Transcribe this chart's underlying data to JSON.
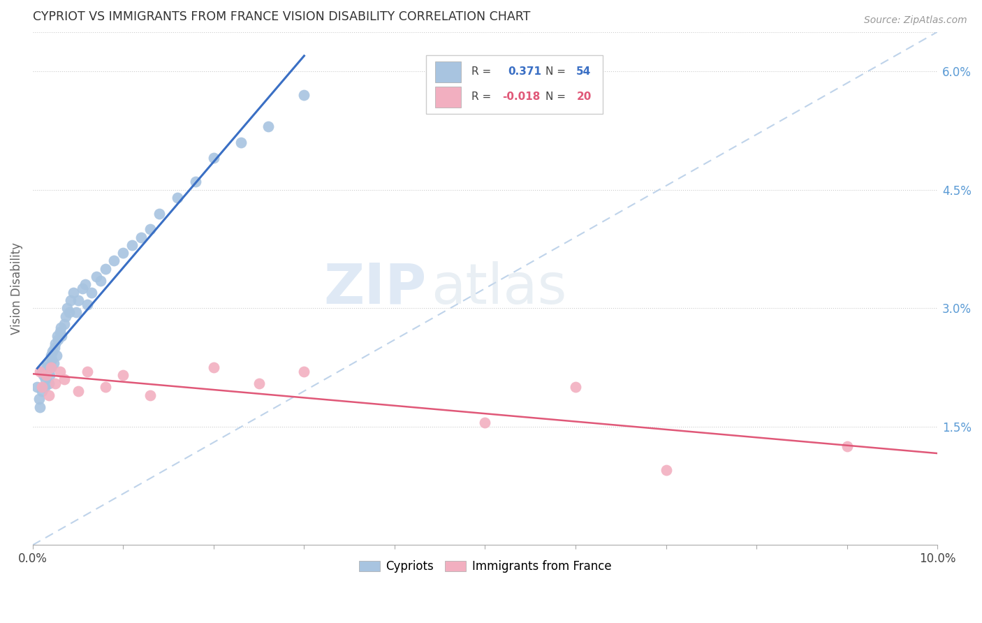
{
  "title": "CYPRIOT VS IMMIGRANTS FROM FRANCE VISION DISABILITY CORRELATION CHART",
  "source": "Source: ZipAtlas.com",
  "ylabel": "Vision Disability",
  "right_yticks": [
    "1.5%",
    "3.0%",
    "4.5%",
    "6.0%"
  ],
  "right_ytick_vals": [
    0.015,
    0.03,
    0.045,
    0.06
  ],
  "xlim": [
    0.0,
    0.1
  ],
  "ylim": [
    0.0,
    0.065
  ],
  "legend_r_blue": "0.371",
  "legend_n_blue": "54",
  "legend_r_pink": "-0.018",
  "legend_n_pink": "20",
  "watermark_zip": "ZIP",
  "watermark_atlas": "atlas",
  "blue_scatter_color": "#a8c4e0",
  "pink_scatter_color": "#f2afc0",
  "blue_line_color": "#3a6fc4",
  "pink_line_color": "#e05878",
  "dashed_line_color": "#b8cfe8",
  "grid_color": "#cccccc",
  "title_color": "#333333",
  "source_color": "#999999",
  "ylabel_color": "#666666",
  "right_tick_color": "#5b9bd5",
  "cypriot_x": [
    0.0005,
    0.0007,
    0.0008,
    0.001,
    0.001,
    0.0012,
    0.0013,
    0.0014,
    0.0015,
    0.0015,
    0.0016,
    0.0018,
    0.0018,
    0.0019,
    0.002,
    0.002,
    0.0021,
    0.0022,
    0.0023,
    0.0024,
    0.0025,
    0.0026,
    0.0027,
    0.0028,
    0.003,
    0.0031,
    0.0032,
    0.0035,
    0.0036,
    0.0038,
    0.004,
    0.0042,
    0.0045,
    0.0048,
    0.005,
    0.0055,
    0.0058,
    0.006,
    0.0065,
    0.007,
    0.0075,
    0.008,
    0.009,
    0.01,
    0.011,
    0.012,
    0.013,
    0.014,
    0.016,
    0.018,
    0.02,
    0.023,
    0.026,
    0.03
  ],
  "cypriot_y": [
    0.02,
    0.0185,
    0.0175,
    0.022,
    0.0195,
    0.0215,
    0.02,
    0.021,
    0.0225,
    0.0215,
    0.023,
    0.022,
    0.0205,
    0.0215,
    0.024,
    0.0225,
    0.0235,
    0.0245,
    0.023,
    0.025,
    0.0255,
    0.024,
    0.0265,
    0.026,
    0.027,
    0.0275,
    0.0265,
    0.028,
    0.029,
    0.03,
    0.0295,
    0.031,
    0.032,
    0.0295,
    0.031,
    0.0325,
    0.033,
    0.0305,
    0.032,
    0.034,
    0.0335,
    0.035,
    0.036,
    0.037,
    0.038,
    0.039,
    0.04,
    0.042,
    0.044,
    0.046,
    0.049,
    0.051,
    0.053,
    0.057
  ],
  "france_x": [
    0.0008,
    0.001,
    0.0015,
    0.0018,
    0.002,
    0.0025,
    0.003,
    0.0035,
    0.005,
    0.006,
    0.008,
    0.01,
    0.013,
    0.02,
    0.025,
    0.03,
    0.05,
    0.06,
    0.07,
    0.09
  ],
  "france_y": [
    0.022,
    0.02,
    0.0215,
    0.019,
    0.0225,
    0.0205,
    0.022,
    0.021,
    0.0195,
    0.022,
    0.02,
    0.0215,
    0.019,
    0.0225,
    0.0205,
    0.022,
    0.0155,
    0.02,
    0.0095,
    0.0125
  ]
}
